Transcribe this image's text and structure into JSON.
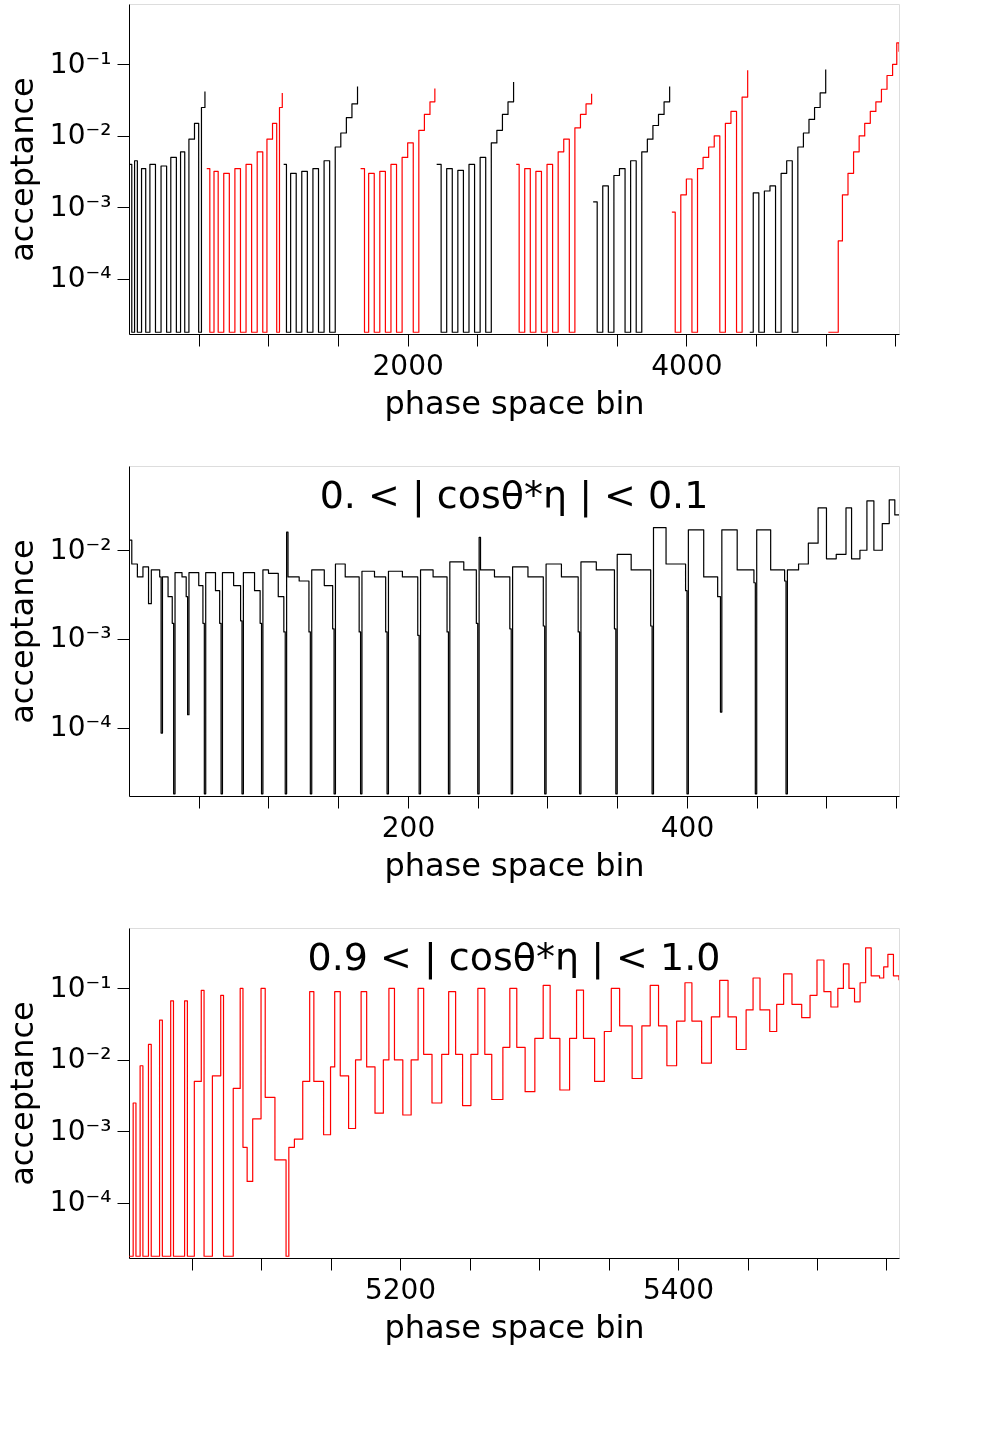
{
  "chart_data": [
    {
      "type": "step",
      "xlabel": "phase space bin",
      "ylabel": "acceptance",
      "log": true,
      "xlim": [
        0,
        5526
      ],
      "ylim": [
        1.7e-05,
        0.7
      ],
      "xticks": [
        {
          "value": 500,
          "label": null
        },
        {
          "value": 1000,
          "label": null
        },
        {
          "value": 1500,
          "label": null
        },
        2000,
        {
          "value": 2500,
          "label": null
        },
        {
          "value": 3000,
          "label": null
        },
        {
          "value": 3500,
          "label": null
        },
        4000,
        {
          "value": 4500,
          "label": null
        },
        {
          "value": 5000,
          "label": null
        },
        {
          "value": 5500,
          "label": null
        }
      ],
      "yticks": [
        {
          "value": 0.0001,
          "label": "10⁻⁴"
        },
        {
          "value": 0.001,
          "label": "10⁻³"
        },
        {
          "value": 0.01,
          "label": "10⁻²"
        },
        {
          "value": 0.1,
          "label": "10⁻¹"
        }
      ],
      "series": [
        {
          "color": "#000000",
          "x": [
            0,
            20,
            40,
            60,
            90,
            120,
            150,
            190,
            230,
            270,
            300,
            340,
            370,
            400,
            430,
            470,
            500,
            520,
            545
          ],
          "values": [
            0.004,
            1.8e-05,
            0.0045,
            1.8e-05,
            0.0035,
            1.8e-05,
            0.004,
            1.8e-05,
            0.0038,
            1.8e-05,
            0.005,
            1.8e-05,
            0.006,
            1.8e-05,
            0.009,
            0.015,
            1.8e-05,
            0.025,
            0.042
          ]
        },
        {
          "color": "#ff0000",
          "x": [
            558,
            580,
            610,
            640,
            680,
            720,
            760,
            800,
            840,
            880,
            920,
            960,
            990,
            1030,
            1060,
            1080,
            1100
          ],
          "values": [
            0.0035,
            1.8e-05,
            0.0032,
            1.8e-05,
            0.003,
            1.8e-05,
            0.0035,
            1.8e-05,
            0.004,
            1.8e-05,
            0.006,
            1.8e-05,
            0.009,
            0.015,
            1.8e-05,
            0.025,
            0.04
          ]
        },
        {
          "color": "#000000",
          "x": [
            1110,
            1130,
            1160,
            1200,
            1240,
            1280,
            1320,
            1360,
            1400,
            1440,
            1480,
            1520,
            1560,
            1600,
            1640
          ],
          "values": [
            0.004,
            1.8e-05,
            0.003,
            1.8e-05,
            0.0032,
            1.8e-05,
            0.0035,
            1.8e-05,
            0.0045,
            1.8e-05,
            0.007,
            0.011,
            0.018,
            0.028,
            0.049
          ]
        },
        {
          "color": "#ff0000",
          "x": [
            1662,
            1690,
            1720,
            1760,
            1800,
            1840,
            1880,
            1920,
            1960,
            2000,
            2040,
            2080,
            2120,
            2160,
            2195
          ],
          "values": [
            0.0035,
            1.8e-05,
            0.003,
            1.8e-05,
            0.0032,
            1.8e-05,
            0.004,
            1.8e-05,
            0.005,
            0.008,
            1.8e-05,
            0.012,
            0.02,
            0.03,
            0.046
          ]
        },
        {
          "color": "#000000",
          "x": [
            2208,
            2240,
            2280,
            2320,
            2360,
            2400,
            2440,
            2480,
            2520,
            2560,
            2600,
            2640,
            2680,
            2720,
            2760
          ],
          "values": [
            0.004,
            1.8e-05,
            0.0035,
            1.8e-05,
            0.0033,
            1.8e-05,
            0.004,
            1.8e-05,
            0.005,
            1.8e-05,
            0.008,
            0.012,
            0.02,
            0.03,
            0.057
          ]
        },
        {
          "color": "#ff0000",
          "x": [
            2779,
            2800,
            2840,
            2880,
            2920,
            2960,
            3000,
            3040,
            3080,
            3120,
            3160,
            3200,
            3240,
            3280,
            3320
          ],
          "values": [
            0.004,
            1.8e-05,
            0.0035,
            1.8e-05,
            0.0032,
            1.8e-05,
            0.004,
            1.8e-05,
            0.006,
            0.009,
            1.8e-05,
            0.013,
            0.02,
            0.028,
            0.039
          ]
        },
        {
          "color": "#000000",
          "x": [
            3331,
            3360,
            3400,
            3440,
            3480,
            3520,
            3560,
            3600,
            3640,
            3680,
            3720,
            3760,
            3800,
            3840,
            3880
          ],
          "values": [
            0.0012,
            1.8e-05,
            0.002,
            1.8e-05,
            0.0028,
            0.0035,
            1.8e-05,
            0.0045,
            1.8e-05,
            0.006,
            0.009,
            0.014,
            0.02,
            0.03,
            0.049
          ]
        },
        {
          "color": "#ff0000",
          "x": [
            3896,
            3920,
            3960,
            4000,
            4040,
            4080,
            4120,
            4160,
            4200,
            4240,
            4280,
            4320,
            4360,
            4400,
            4440
          ],
          "values": [
            0.00086,
            1.8e-05,
            0.0015,
            0.0025,
            1.8e-05,
            0.0035,
            0.005,
            0.007,
            0.01,
            1.8e-05,
            0.015,
            0.022,
            1.8e-05,
            0.035,
            0.083
          ]
        },
        {
          "color": "#000000",
          "x": [
            4455,
            4480,
            4520,
            4560,
            4600,
            4640,
            4680,
            4720,
            4760,
            4800,
            4840,
            4880,
            4920,
            4960,
            5000
          ],
          "values": [
            1.8e-05,
            0.0016,
            1.8e-05,
            0.0017,
            0.002,
            1.8e-05,
            0.003,
            0.0045,
            1.8e-05,
            0.007,
            0.011,
            0.017,
            0.025,
            0.04,
            0.085
          ]
        },
        {
          "color": "#ff0000",
          "x": [
            5019,
            5060,
            5090,
            5120,
            5160,
            5200,
            5240,
            5280,
            5320,
            5360,
            5400,
            5440,
            5480,
            5510,
            5526
          ],
          "values": [
            1.8e-05,
            1.8e-05,
            0.00034,
            0.0015,
            0.003,
            0.006,
            0.01,
            0.015,
            0.022,
            0.03,
            0.045,
            0.07,
            0.1,
            0.2,
            0.15
          ]
        }
      ]
    },
    {
      "type": "step",
      "title": "0. < | cosθ*η | < 0.1",
      "xlabel": "phase space bin",
      "ylabel": "acceptance",
      "log": true,
      "xlim": [
        0,
        552
      ],
      "ylim": [
        1.7e-05,
        0.089
      ],
      "xticks": [
        {
          "value": 50,
          "label": null
        },
        {
          "value": 100,
          "label": null
        },
        {
          "value": 150,
          "label": null
        },
        200,
        {
          "value": 250,
          "label": null
        },
        {
          "value": 300,
          "label": null
        },
        {
          "value": 350,
          "label": null
        },
        400,
        {
          "value": 450,
          "label": null
        },
        {
          "value": 500,
          "label": null
        },
        {
          "value": 550,
          "label": null
        }
      ],
      "yticks": [
        {
          "value": 0.0001,
          "label": "10⁻⁴"
        },
        {
          "value": 0.001,
          "label": "10⁻³"
        },
        {
          "value": 0.01,
          "label": "10⁻²"
        }
      ],
      "series": [
        {
          "color": "#000000",
          "x": [
            0,
            2,
            6,
            10,
            14,
            16,
            22,
            23,
            24,
            28,
            31,
            32,
            33,
            38,
            41,
            42,
            43,
            50,
            53,
            54,
            55,
            62,
            65,
            66,
            67,
            75,
            80,
            81,
            82,
            90,
            94,
            95,
            96,
            100,
            107,
            111,
            112,
            113,
            114,
            122,
            129,
            130,
            131,
            140,
            146,
            147,
            148,
            155,
            165,
            166,
            167,
            176,
            184,
            185,
            186,
            196,
            207,
            208,
            209,
            218,
            228,
            229,
            230,
            240,
            249,
            250,
            251,
            252,
            262,
            273,
            274,
            275,
            286,
            297,
            298,
            299,
            310,
            322,
            323,
            324,
            335,
            348,
            349,
            350,
            360,
            374,
            375,
            376,
            385,
            399,
            400,
            401,
            412,
            422,
            424,
            425,
            436,
            448,
            449,
            450,
            460,
            470,
            471,
            472,
            480,
            487,
            494,
            500,
            507,
            514,
            518,
            524,
            529,
            534,
            540,
            545,
            549,
            552
          ],
          "values": [
            0.013,
            0.007,
            0.005,
            0.0065,
            0.0025,
            0.006,
            0.005,
            8.7e-05,
            0.005,
            0.003,
            0.0015,
            1.8e-05,
            0.0056,
            0.005,
            0.003,
            0.00014,
            0.0056,
            0.004,
            0.0015,
            1.8e-05,
            0.0056,
            0.0035,
            0.0015,
            1.8e-05,
            0.0056,
            0.004,
            0.0016,
            1.8e-05,
            0.0056,
            0.0035,
            0.0015,
            1.8e-05,
            0.006,
            0.0055,
            0.003,
            0.0012,
            1.8e-05,
            0.016,
            0.005,
            0.0045,
            0.0012,
            1.8e-05,
            0.006,
            0.004,
            0.0013,
            1.8e-05,
            0.007,
            0.005,
            0.0012,
            1.8e-05,
            0.0058,
            0.005,
            0.0012,
            1.8e-05,
            0.0058,
            0.005,
            0.0011,
            1.8e-05,
            0.006,
            0.005,
            0.0012,
            1.8e-05,
            0.0074,
            0.006,
            0.0015,
            1.8e-05,
            0.014,
            0.006,
            0.005,
            0.0013,
            1.8e-05,
            0.0065,
            0.005,
            0.0014,
            1.8e-05,
            0.007,
            0.005,
            0.0012,
            1.8e-05,
            0.0074,
            0.006,
            0.0013,
            1.8e-05,
            0.009,
            0.006,
            0.0014,
            1.8e-05,
            0.018,
            0.007,
            0.0035,
            1.8e-05,
            0.017,
            0.005,
            0.003,
            0.00015,
            0.017,
            0.006,
            0.0043,
            1.8e-05,
            0.017,
            0.006,
            0.0045,
            1.8e-05,
            0.006,
            0.007,
            0.012,
            0.03,
            0.008,
            0.009,
            0.03,
            0.008,
            0.01,
            0.036,
            0.01,
            0.02,
            0.037,
            0.025,
            0.025
          ]
        }
      ]
    },
    {
      "type": "step",
      "title": "0.9 < | cosθ*η | < 1.0",
      "xlabel": "phase space bin",
      "ylabel": "acceptance",
      "log": true,
      "xlim": [
        5005,
        5559
      ],
      "ylim": [
        1.7e-05,
        0.7
      ],
      "xticks": [
        {
          "value": 5050,
          "label": null
        },
        {
          "value": 5100,
          "label": null
        },
        {
          "value": 5150,
          "label": null
        },
        5200,
        {
          "value": 5250,
          "label": null
        },
        {
          "value": 5300,
          "label": null
        },
        {
          "value": 5350,
          "label": null
        },
        5400,
        {
          "value": 5450,
          "label": null
        },
        {
          "value": 5500,
          "label": null
        },
        {
          "value": 5550,
          "label": null
        }
      ],
      "yticks": [
        {
          "value": 0.0001,
          "label": "10⁻⁴"
        },
        {
          "value": 0.001,
          "label": "10⁻³"
        },
        {
          "value": 0.01,
          "label": "10⁻²"
        },
        {
          "value": 0.1,
          "label": "10⁻¹"
        }
      ],
      "series": [
        {
          "color": "#ff0000",
          "x": [
            5005,
            5008,
            5010,
            5013,
            5015,
            5019,
            5021,
            5027,
            5029,
            5035,
            5037,
            5045,
            5047,
            5052,
            5057,
            5059,
            5065,
            5071,
            5073,
            5080,
            5085,
            5087,
            5090,
            5094,
            5100,
            5103,
            5110,
            5118,
            5120,
            5124,
            5130,
            5135,
            5138,
            5145,
            5150,
            5153,
            5157,
            5163,
            5168,
            5172,
            5176,
            5182,
            5188,
            5192,
            5196,
            5202,
            5208,
            5213,
            5217,
            5223,
            5230,
            5235,
            5240,
            5245,
            5251,
            5256,
            5261,
            5266,
            5274,
            5279,
            5284,
            5290,
            5297,
            5303,
            5308,
            5315,
            5322,
            5327,
            5332,
            5340,
            5347,
            5352,
            5358,
            5367,
            5374,
            5380,
            5386,
            5392,
            5399,
            5405,
            5410,
            5417,
            5424,
            5430,
            5436,
            5442,
            5449,
            5454,
            5459,
            5466,
            5471,
            5476,
            5482,
            5489,
            5495,
            5500,
            5505,
            5510,
            5515,
            5519,
            5523,
            5527,
            5531,
            5535,
            5539,
            5545,
            5548,
            5551,
            5555,
            5559
          ],
          "values": [
            1.8e-05,
            0.0025,
            1.8e-05,
            0.0083,
            1.8e-05,
            0.0165,
            1.8e-05,
            0.036,
            1.8e-05,
            0.067,
            1.8e-05,
            0.067,
            1.8e-05,
            0.005,
            0.094,
            1.8e-05,
            0.006,
            0.08,
            1.8e-05,
            0.004,
            0.1,
            0.0006,
            0.0002,
            0.0015,
            0.1,
            0.003,
            0.0004,
            1.8e-05,
            0.0006,
            0.00078,
            0.005,
            0.09,
            0.005,
            0.0009,
            0.008,
            0.09,
            0.006,
            0.0011,
            0.01,
            0.09,
            0.008,
            0.0018,
            0.01,
            0.1,
            0.01,
            0.0017,
            0.01,
            0.1,
            0.012,
            0.0025,
            0.012,
            0.09,
            0.012,
            0.0023,
            0.012,
            0.1,
            0.012,
            0.0028,
            0.015,
            0.1,
            0.015,
            0.0036,
            0.02,
            0.11,
            0.02,
            0.0038,
            0.02,
            0.095,
            0.02,
            0.005,
            0.025,
            0.1,
            0.03,
            0.0055,
            0.03,
            0.11,
            0.03,
            0.0083,
            0.035,
            0.12,
            0.035,
            0.009,
            0.04,
            0.13,
            0.04,
            0.014,
            0.05,
            0.14,
            0.05,
            0.025,
            0.06,
            0.16,
            0.06,
            0.039,
            0.08,
            0.25,
            0.09,
            0.055,
            0.1,
            0.22,
            0.1,
            0.065,
            0.12,
            0.37,
            0.15,
            0.14,
            0.2,
            0.3,
            0.15,
            0.13
          ]
        }
      ]
    }
  ]
}
